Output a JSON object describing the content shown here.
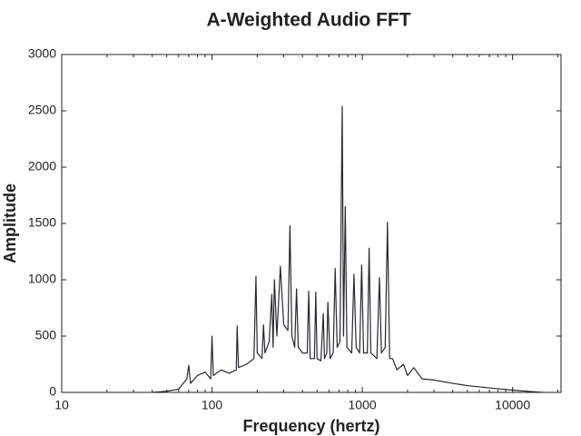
{
  "chart_data": {
    "type": "line",
    "title": "A-Weighted Audio FFT",
    "x_label": "Frequency (hertz)",
    "y_label": "Amplitude",
    "x_scale": "log",
    "color": "#262a2e",
    "xlim": [
      10,
      21000
    ],
    "xticks": [
      10,
      100,
      1000,
      10000
    ],
    "ylim": [
      0,
      3000
    ],
    "yticks": [
      0,
      500,
      1000,
      1500,
      2000,
      2500,
      3000
    ],
    "x": [
      40,
      50,
      60,
      68,
      70,
      72,
      80,
      90,
      98,
      100,
      102,
      115,
      130,
      145,
      147,
      150,
      170,
      190,
      196,
      200,
      215,
      220,
      225,
      240,
      250,
      255,
      260,
      270,
      285,
      300,
      320,
      330,
      340,
      355,
      365,
      375,
      400,
      430,
      440,
      450,
      480,
      490,
      500,
      530,
      550,
      560,
      580,
      590,
      610,
      640,
      660,
      680,
      710,
      735,
      750,
      770,
      790,
      850,
      880,
      910,
      960,
      990,
      1020,
      1080,
      1110,
      1140,
      1250,
      1300,
      1340,
      1420,
      1470,
      1520,
      1590,
      1700,
      1880,
      2000,
      2200,
      2500,
      3000,
      4000,
      5000,
      7000,
      10000,
      14000,
      16000
    ],
    "values": [
      0,
      10,
      30,
      120,
      240,
      80,
      150,
      180,
      120,
      500,
      150,
      200,
      170,
      200,
      590,
      220,
      250,
      300,
      1030,
      350,
      300,
      600,
      350,
      450,
      870,
      400,
      1000,
      500,
      1120,
      600,
      550,
      1480,
      500,
      400,
      920,
      400,
      350,
      350,
      900,
      300,
      300,
      890,
      300,
      280,
      700,
      300,
      350,
      800,
      300,
      350,
      1100,
      400,
      450,
      2540,
      500,
      1650,
      400,
      350,
      1050,
      400,
      350,
      1130,
      350,
      350,
      1280,
      350,
      300,
      1020,
      350,
      400,
      1510,
      300,
      300,
      200,
      250,
      150,
      220,
      120,
      110,
      80,
      60,
      40,
      20,
      5,
      0
    ]
  }
}
